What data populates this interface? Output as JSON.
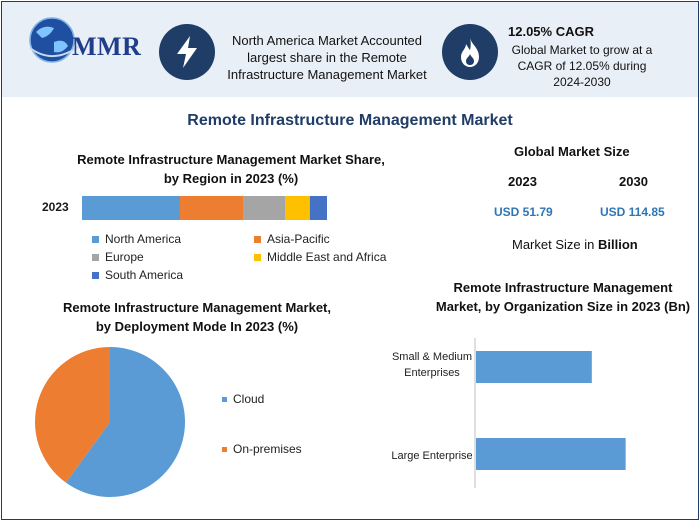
{
  "logo": {
    "text": "MMR"
  },
  "highlights": [
    {
      "icon": "lightning-icon",
      "text": "North America Market Accounted largest share in the Remote Infrastructure Management Market"
    },
    {
      "icon": "flame-icon",
      "title": "12.05% CAGR",
      "text": "Global Market to grow at a CAGR of 12.05% during 2024-2030"
    }
  ],
  "main_title": "Remote Infrastructure Management Market",
  "market_size": {
    "title": "Global Market Size",
    "years": [
      "2023",
      "2030"
    ],
    "values": [
      "USD 51.79",
      "USD 114.85"
    ],
    "note_prefix": "Market Size in ",
    "note_bold": "Billion"
  },
  "colors": {
    "north_america": "#5b9bd5",
    "asia_pacific": "#ed7d31",
    "europe": "#a5a5a5",
    "mea": "#ffc000",
    "south_america": "#4472c4",
    "header_bg": "#e9eff6",
    "accent": "#1f3d66"
  },
  "chart_data": [
    {
      "type": "bar",
      "orientation": "horizontal-stacked",
      "title": "Remote Infrastructure Management Market Share, by Region in 2023 (%)",
      "categories": [
        "2023"
      ],
      "series": [
        {
          "name": "North America",
          "values": [
            40
          ]
        },
        {
          "name": "Asia-Pacific",
          "values": [
            26
          ]
        },
        {
          "name": "Europe",
          "values": [
            17
          ]
        },
        {
          "name": "Middle East and Africa",
          "values": [
            10
          ]
        },
        {
          "name": "South America",
          "values": [
            7
          ]
        }
      ],
      "legend_position": "bottom"
    },
    {
      "type": "pie",
      "title": "Remote Infrastructure Management Market, by Deployment Mode In 2023 (%)",
      "labels": [
        "Cloud",
        "On-premises"
      ],
      "values": [
        60,
        40
      ],
      "colors": [
        "#5b9bd5",
        "#ed7d31"
      ],
      "legend_position": "right"
    },
    {
      "type": "bar",
      "orientation": "horizontal",
      "title": "Remote Infrastructure Management Market, by Organization Size in 2023 (Bn)",
      "categories": [
        "Small & Medium Enterprises",
        "Large Enterprise"
      ],
      "values": [
        22.6,
        29.2
      ],
      "xlim": [
        0,
        40
      ],
      "grid": false
    }
  ]
}
